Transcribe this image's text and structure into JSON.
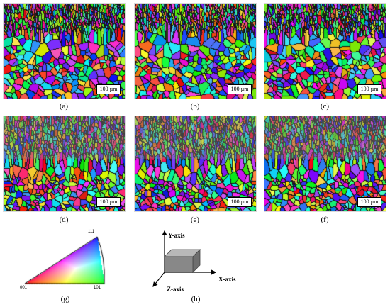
{
  "panels": [
    {
      "id": "a",
      "caption": "(a)",
      "scale_label": "100 µm",
      "heavy_top": false
    },
    {
      "id": "b",
      "caption": "(b)",
      "scale_label": "100 µm",
      "heavy_top": false
    },
    {
      "id": "c",
      "caption": "(c)",
      "scale_label": "100 µm",
      "heavy_top": false
    },
    {
      "id": "d",
      "caption": "(d)",
      "scale_label": "100 µm",
      "heavy_top": true
    },
    {
      "id": "e",
      "caption": "(e)",
      "scale_label": "100 µm",
      "heavy_top": true
    },
    {
      "id": "f",
      "caption": "(f)",
      "scale_label": "100 µm",
      "heavy_top": true
    }
  ],
  "ipf": {
    "caption": "(g)",
    "corner_top": "111",
    "corner_left": "001",
    "corner_right": "101",
    "colors": {
      "c001": "#ff0000",
      "c101": "#00ff00",
      "c111": "#0000ff"
    }
  },
  "axes": {
    "caption": "(h)",
    "y_label": "Y-axis",
    "x_label": "X-axis",
    "z_label": "Z-axis",
    "box_color": "#888888"
  }
}
